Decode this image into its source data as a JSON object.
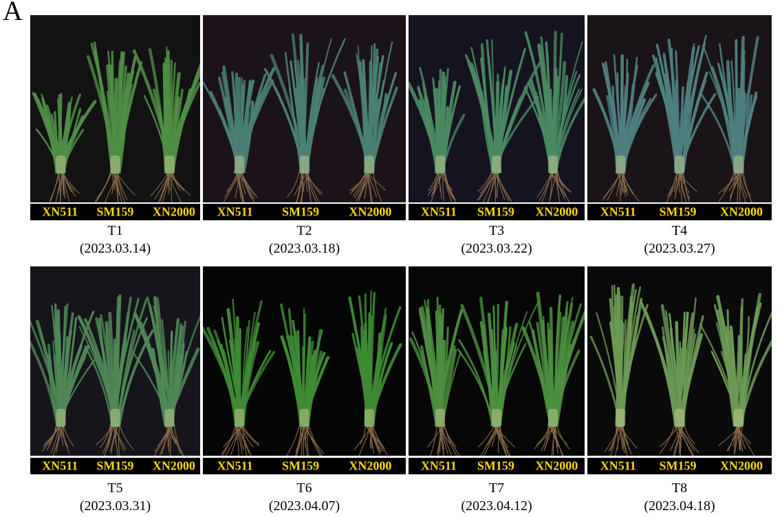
{
  "figure_label": "A",
  "colors": {
    "label_bar_bg": "#000000",
    "label_text": "#ffd800",
    "leaf": "#3d7a3a",
    "stem": "#b9c98a",
    "root": "#8b6a4a"
  },
  "panels": [
    {
      "id": "T1",
      "time_label": "T1",
      "date": "(2023.03.14)",
      "cultivars": [
        "XN511",
        "SM159",
        "XN2000"
      ],
      "bg": "#121212",
      "plant_heights": [
        0.55,
        0.88,
        0.85
      ],
      "leaf_color": "#4f8f45"
    },
    {
      "id": "T2",
      "time_label": "T2",
      "date": "(2023.03.18)",
      "cultivars": [
        "XN511",
        "SM159",
        "XN2000"
      ],
      "bg": "#1b1319",
      "plant_heights": [
        0.72,
        0.93,
        0.9
      ],
      "leaf_color": "#4a7f74"
    },
    {
      "id": "T3",
      "time_label": "T3",
      "date": "(2023.03.22)",
      "cultivars": [
        "XN511",
        "SM159",
        "XN2000"
      ],
      "bg": "#151320",
      "plant_heights": [
        0.72,
        0.9,
        0.95
      ],
      "leaf_color": "#4a8a62"
    },
    {
      "id": "T4",
      "time_label": "T4",
      "date": "(2023.03.27)",
      "cultivars": [
        "XN511",
        "SM159",
        "XN2000"
      ],
      "bg": "#1a1317",
      "plant_heights": [
        0.8,
        0.92,
        0.92
      ],
      "leaf_color": "#4f7f80"
    },
    {
      "id": "T5",
      "time_label": "T5",
      "date": "(2023.03.31)",
      "cultivars": [
        "XN511",
        "SM159",
        "XN2000"
      ],
      "bg": "#15151b",
      "plant_heights": [
        0.82,
        0.9,
        0.86
      ],
      "leaf_color": "#4f8856"
    },
    {
      "id": "T6",
      "time_label": "T6",
      "date": "(2023.04.07)",
      "cultivars": [
        "XN511",
        "SM159",
        "XN2000"
      ],
      "bg": "#050505",
      "plant_heights": [
        0.86,
        0.84,
        0.9
      ],
      "leaf_color": "#3f8a35"
    },
    {
      "id": "T7",
      "time_label": "T7",
      "date": "(2023.04.12)",
      "cultivars": [
        "XN511",
        "SM159",
        "XN2000"
      ],
      "bg": "#060606",
      "plant_heights": [
        0.86,
        0.86,
        0.92
      ],
      "leaf_color": "#4c8f3f"
    },
    {
      "id": "T8",
      "time_label": "T8",
      "date": "(2023.04.18)",
      "cultivars": [
        "XN511",
        "SM159",
        "XN2000"
      ],
      "bg": "#0a0a0a",
      "plant_heights": [
        0.96,
        0.86,
        0.88
      ],
      "leaf_color": "#6a9a55"
    }
  ]
}
